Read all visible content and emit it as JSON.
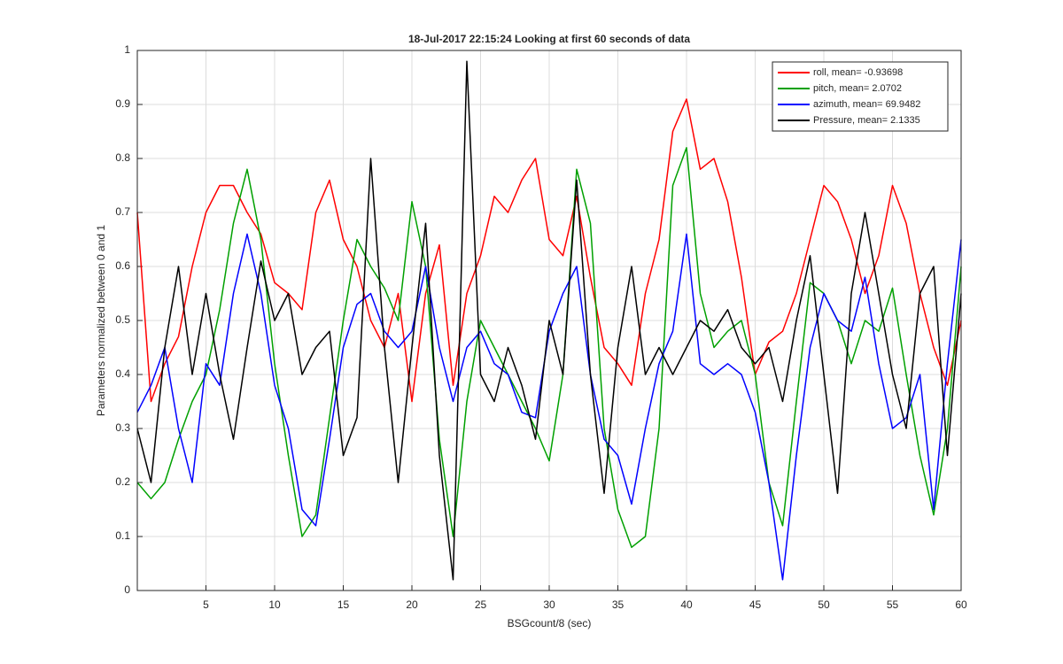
{
  "chart_data": {
    "type": "line",
    "title": "18-Jul-2017 22:15:24 Looking at first 60 seconds of data",
    "x_label": "BSGcount/8 (sec)",
    "y_label": "Parameters normalized between 0 and 1",
    "x": [
      0,
      1,
      2,
      3,
      4,
      5,
      6,
      7,
      8,
      9,
      10,
      11,
      12,
      13,
      14,
      15,
      16,
      17,
      18,
      19,
      20,
      21,
      22,
      23,
      24,
      25,
      26,
      27,
      28,
      29,
      30,
      31,
      32,
      33,
      34,
      35,
      36,
      37,
      38,
      39,
      40,
      41,
      42,
      43,
      44,
      45,
      46,
      47,
      48,
      49,
      50,
      51,
      52,
      53,
      54,
      55,
      56,
      57,
      58,
      59,
      60
    ],
    "series": [
      {
        "name": "roll, mean= -0.93698",
        "color": "#ff0000",
        "values": [
          0.7,
          0.35,
          0.42,
          0.47,
          0.6,
          0.7,
          0.75,
          0.75,
          0.7,
          0.66,
          0.57,
          0.55,
          0.52,
          0.7,
          0.76,
          0.65,
          0.6,
          0.5,
          0.45,
          0.55,
          0.35,
          0.55,
          0.64,
          0.38,
          0.55,
          0.62,
          0.73,
          0.7,
          0.76,
          0.8,
          0.65,
          0.62,
          0.73,
          0.58,
          0.45,
          0.42,
          0.38,
          0.55,
          0.65,
          0.85,
          0.91,
          0.78,
          0.8,
          0.72,
          0.58,
          0.4,
          0.46,
          0.48,
          0.55,
          0.65,
          0.75,
          0.72,
          0.65,
          0.55,
          0.62,
          0.75,
          0.68,
          0.55,
          0.45,
          0.38,
          0.5
        ]
      },
      {
        "name": "pitch, mean= 2.0702",
        "color": "#00a000",
        "values": [
          0.2,
          0.17,
          0.2,
          0.28,
          0.35,
          0.4,
          0.52,
          0.68,
          0.78,
          0.65,
          0.42,
          0.25,
          0.1,
          0.14,
          0.32,
          0.5,
          0.65,
          0.6,
          0.56,
          0.5,
          0.72,
          0.6,
          0.28,
          0.1,
          0.35,
          0.5,
          0.45,
          0.4,
          0.35,
          0.3,
          0.24,
          0.4,
          0.78,
          0.68,
          0.3,
          0.15,
          0.08,
          0.1,
          0.3,
          0.75,
          0.82,
          0.55,
          0.45,
          0.48,
          0.5,
          0.4,
          0.2,
          0.12,
          0.35,
          0.57,
          0.55,
          0.5,
          0.42,
          0.5,
          0.48,
          0.56,
          0.4,
          0.25,
          0.14,
          0.3,
          0.6
        ]
      },
      {
        "name": "azimuth, mean= 69.9482",
        "color": "#0000ff",
        "values": [
          0.33,
          0.38,
          0.45,
          0.3,
          0.2,
          0.42,
          0.38,
          0.55,
          0.66,
          0.55,
          0.38,
          0.3,
          0.15,
          0.12,
          0.28,
          0.45,
          0.53,
          0.55,
          0.48,
          0.45,
          0.48,
          0.6,
          0.45,
          0.35,
          0.45,
          0.48,
          0.42,
          0.4,
          0.33,
          0.32,
          0.48,
          0.55,
          0.6,
          0.4,
          0.28,
          0.25,
          0.16,
          0.3,
          0.42,
          0.48,
          0.66,
          0.42,
          0.4,
          0.42,
          0.4,
          0.33,
          0.2,
          0.02,
          0.25,
          0.45,
          0.55,
          0.5,
          0.48,
          0.58,
          0.42,
          0.3,
          0.32,
          0.4,
          0.15,
          0.42,
          0.65
        ]
      },
      {
        "name": "Pressure, mean= 2.1335",
        "color": "#000000",
        "values": [
          0.3,
          0.2,
          0.45,
          0.6,
          0.4,
          0.55,
          0.4,
          0.28,
          0.45,
          0.61,
          0.5,
          0.55,
          0.4,
          0.45,
          0.48,
          0.25,
          0.32,
          0.8,
          0.45,
          0.2,
          0.45,
          0.68,
          0.25,
          0.02,
          0.98,
          0.4,
          0.35,
          0.45,
          0.38,
          0.28,
          0.5,
          0.4,
          0.76,
          0.4,
          0.18,
          0.45,
          0.6,
          0.4,
          0.45,
          0.4,
          0.45,
          0.5,
          0.48,
          0.52,
          0.45,
          0.42,
          0.45,
          0.35,
          0.5,
          0.62,
          0.4,
          0.18,
          0.55,
          0.7,
          0.55,
          0.4,
          0.3,
          0.55,
          0.6,
          0.25,
          0.55
        ]
      }
    ],
    "xlim": [
      0,
      60
    ],
    "xticks": [
      5,
      10,
      15,
      20,
      25,
      30,
      35,
      40,
      45,
      50,
      55,
      60
    ],
    "ylim": [
      0,
      1
    ],
    "yticks": [
      0,
      0.1,
      0.2,
      0.3,
      0.4,
      0.5,
      0.6,
      0.7,
      0.8,
      0.9,
      1
    ],
    "grid": true,
    "legend": "upper right"
  }
}
